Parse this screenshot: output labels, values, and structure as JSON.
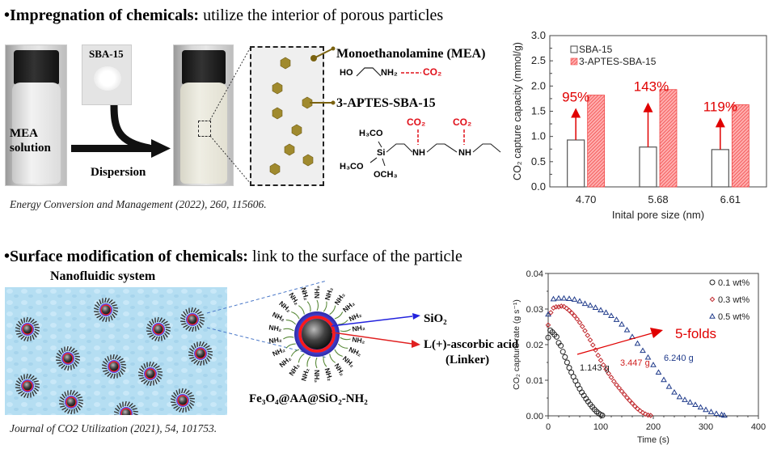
{
  "section1": {
    "bullet": "•",
    "title_bold": "Impregnation  of chemicals:",
    "title_rest": " utilize the interior of porous particles",
    "photo_labels": {
      "mea_line1": "MEA",
      "mea_line2": "solution",
      "sba": "SBA-15",
      "dispersion": "Dispersion"
    },
    "schematic": {
      "mea_title": "Monoethanolamine (MEA)",
      "mea_formula_ho": "HO",
      "mea_formula_nh2": "NH₂",
      "mea_co2": "CO₂",
      "aptes_title": "3-APTES-SBA-15",
      "h3co_top": "H₃CO",
      "si": "Si",
      "h3co_bottom": "H₃CO",
      "och3": "OCH₃",
      "nh1": "NH",
      "nh2": "NH",
      "co2_a": "CO₂",
      "co2_b": "CO₂"
    },
    "citation": "Energy Conversion and Management (2022), 260, 115606."
  },
  "section2": {
    "bullet": "•",
    "title_bold": "Surface modification  of chemicals:",
    "title_rest": " link to the surface of the particle",
    "nanofluid_title": "Nanofluidic system",
    "particle_label": "Fe₃O₄@AA@SiO₂-NH₂",
    "sio2_label": "SiO₂",
    "linker_label_1": "L(+)-ascorbic acid",
    "linker_label_2": "(Linker)",
    "nh2": "NH₂",
    "citation": "Journal of CO2 Utilization (2021), 54, 101753."
  },
  "chart_data": [
    {
      "type": "bar",
      "title": "",
      "xlabel": "Inital pore size (nm)",
      "ylabel": "CO₂ capture capacity (mmol/g)",
      "ylim": [
        0,
        3.0
      ],
      "yticks": [
        "0.0",
        "0.5",
        "1.0",
        "1.5",
        "2.0",
        "2.5",
        "3.0"
      ],
      "categories": [
        "4.70",
        "5.68",
        "6.61"
      ],
      "series": [
        {
          "name": "SBA-15",
          "values": [
            0.93,
            0.79,
            0.74
          ],
          "color": "#555555",
          "fill": "none"
        },
        {
          "name": "3-APTES-SBA-15",
          "values": [
            1.82,
            1.93,
            1.63
          ],
          "color": "#f04848",
          "fill": "hatched"
        }
      ],
      "annotations": [
        "95%",
        "143%",
        "119%"
      ],
      "annotation_color": "#e00000",
      "legend": "top-left"
    },
    {
      "type": "scatter",
      "title": "",
      "xlabel": "Time (s)",
      "ylabel": "CO₂ capture rate (g s⁻¹)",
      "xlim": [
        0,
        400
      ],
      "ylim": [
        0,
        0.04
      ],
      "xticks": [
        "0",
        "100",
        "200",
        "300",
        "400"
      ],
      "yticks": [
        "0.00",
        "0.01",
        "0.02",
        "0.03",
        "0.04"
      ],
      "legend": "top-right",
      "series": [
        {
          "name": "0.1 wt%",
          "marker": "circle",
          "color": "#222222",
          "x": [
            0,
            4,
            8,
            12,
            16,
            20,
            24,
            28,
            32,
            36,
            40,
            44,
            48,
            52,
            56,
            60,
            64,
            68,
            72,
            76,
            80,
            84,
            88,
            92,
            96,
            100,
            103
          ],
          "y": [
            0.022,
            0.024,
            0.0235,
            0.0228,
            0.0222,
            0.0205,
            0.0197,
            0.018,
            0.0165,
            0.015,
            0.0135,
            0.0122,
            0.011,
            0.0098,
            0.0087,
            0.0076,
            0.0066,
            0.0057,
            0.0048,
            0.004,
            0.0032,
            0.0025,
            0.0018,
            0.0012,
            0.0007,
            0.0003,
            0.0001
          ]
        },
        {
          "name": "0.3 wt%",
          "marker": "diamond",
          "color": "#c0282d",
          "x": [
            0,
            5,
            10,
            15,
            20,
            25,
            30,
            35,
            40,
            45,
            50,
            55,
            60,
            65,
            70,
            75,
            80,
            85,
            90,
            95,
            100,
            105,
            110,
            115,
            120,
            125,
            130,
            135,
            140,
            145,
            150,
            155,
            160,
            165,
            170,
            175,
            180,
            185,
            190,
            195
          ],
          "y": [
            0.0255,
            0.029,
            0.0303,
            0.0306,
            0.0306,
            0.0308,
            0.0307,
            0.0302,
            0.0296,
            0.0289,
            0.0281,
            0.0272,
            0.0262,
            0.0251,
            0.0239,
            0.0226,
            0.0213,
            0.0199,
            0.0185,
            0.017,
            0.0156,
            0.0143,
            0.0131,
            0.0119,
            0.0108,
            0.0097,
            0.0087,
            0.0078,
            0.0069,
            0.006,
            0.0051,
            0.0043,
            0.0035,
            0.0027,
            0.002,
            0.0014,
            0.0009,
            0.0005,
            0.0002,
            0.0001
          ]
        },
        {
          "name": "0.5 wt%",
          "marker": "triangle",
          "color": "#1f3a8a",
          "x": [
            0,
            10,
            20,
            30,
            40,
            50,
            60,
            70,
            80,
            90,
            100,
            110,
            120,
            130,
            140,
            150,
            160,
            170,
            180,
            190,
            200,
            210,
            220,
            230,
            240,
            250,
            260,
            270,
            280,
            290,
            300,
            310,
            320,
            330,
            335
          ],
          "y": [
            0.0285,
            0.0328,
            0.033,
            0.033,
            0.0329,
            0.0327,
            0.0322,
            0.0315,
            0.031,
            0.0304,
            0.0297,
            0.029,
            0.0281,
            0.027,
            0.0257,
            0.0241,
            0.0222,
            0.0203,
            0.0183,
            0.0164,
            0.0143,
            0.0122,
            0.0101,
            0.0082,
            0.0066,
            0.0053,
            0.0045,
            0.0038,
            0.0031,
            0.0024,
            0.0017,
            0.0011,
            0.0006,
            0.0003,
            0.0001
          ]
        }
      ],
      "annotations": [
        {
          "text": "1.143 g",
          "color": "#222222"
        },
        {
          "text": "3.447 g",
          "color": "#d02020"
        },
        {
          "text": "6.240 g",
          "color": "#1f3a8a"
        },
        {
          "text": "5-folds",
          "color": "#e00000"
        }
      ]
    }
  ]
}
